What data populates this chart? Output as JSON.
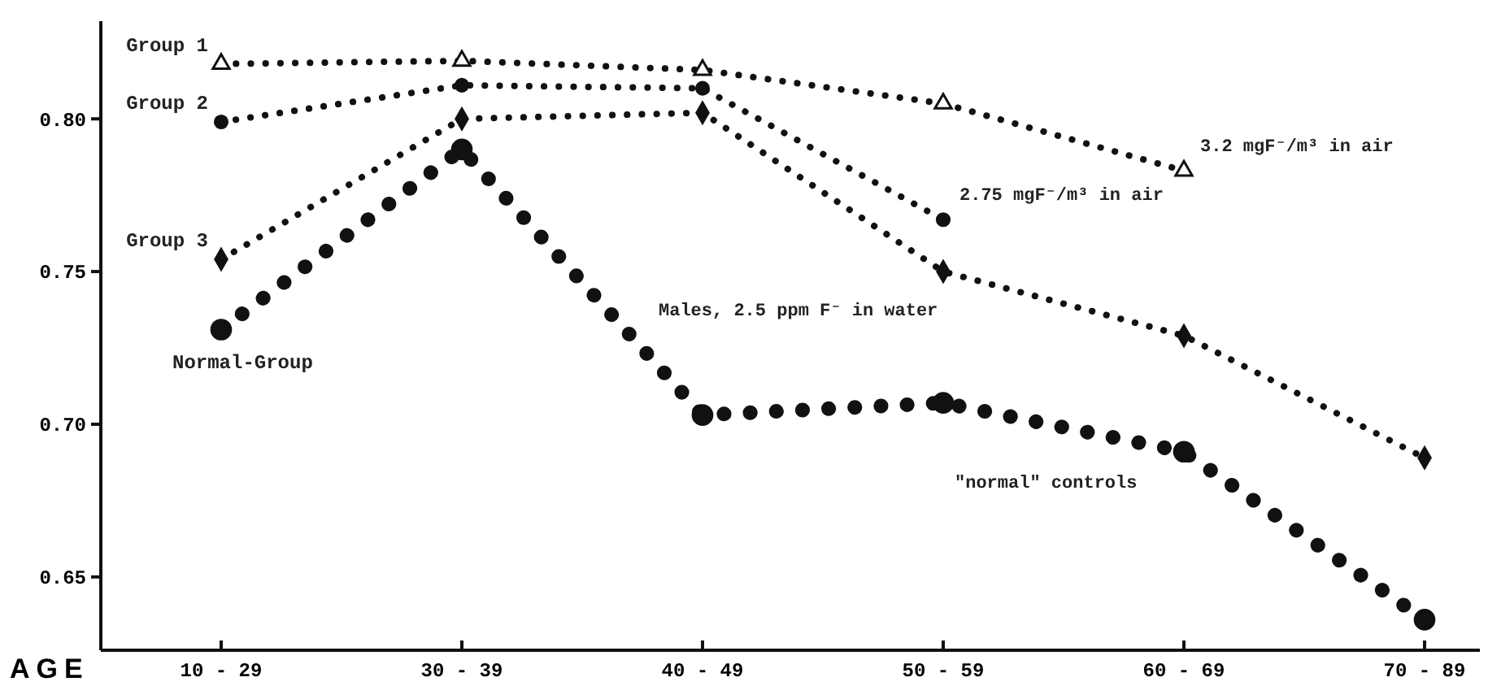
{
  "chart_data": {
    "type": "line",
    "xlabel": "AGE",
    "categories": [
      "10 - 29",
      "30 - 39",
      "40 - 49",
      "50 - 59",
      "60 - 69",
      "70 - 89"
    ],
    "series": [
      {
        "name": "Group 1",
        "color": "#111111",
        "marker": "triangle",
        "values": [
          0.818,
          0.819,
          0.816,
          0.805,
          0.783,
          null
        ]
      },
      {
        "name": "Group 2",
        "color": "#111111",
        "marker": "circle",
        "values": [
          0.799,
          0.811,
          0.81,
          0.767,
          null,
          null
        ]
      },
      {
        "name": "Group 3",
        "color": "#111111",
        "marker": "diamond",
        "values": [
          0.754,
          0.8,
          0.802,
          0.75,
          0.729,
          0.689
        ]
      },
      {
        "name": "Normal-Group",
        "color": "#111111",
        "marker": "circle",
        "values": [
          0.731,
          0.79,
          0.703,
          0.707,
          0.691,
          0.636
        ]
      }
    ],
    "line_style": "dotted",
    "ylim": [
      0.626,
      0.832
    ],
    "yticks": [
      {
        "value": 0.8,
        "label": "0.80"
      },
      {
        "value": 0.75,
        "label": "0.75"
      },
      {
        "value": 0.7,
        "label": "0.70"
      },
      {
        "value": 0.65,
        "label": "0.65"
      }
    ],
    "grid": false,
    "annotations": [
      {
        "text": "3.2 mgF⁻/m³ in air",
        "x": "60 - 69",
        "y": 0.783
      },
      {
        "text": "2.75 mgF⁻/m³ in air",
        "x": "50 - 59",
        "y": 0.767
      },
      "Males, 2.5 ppm F⁻ in water",
      "\"normal\" controls"
    ]
  }
}
